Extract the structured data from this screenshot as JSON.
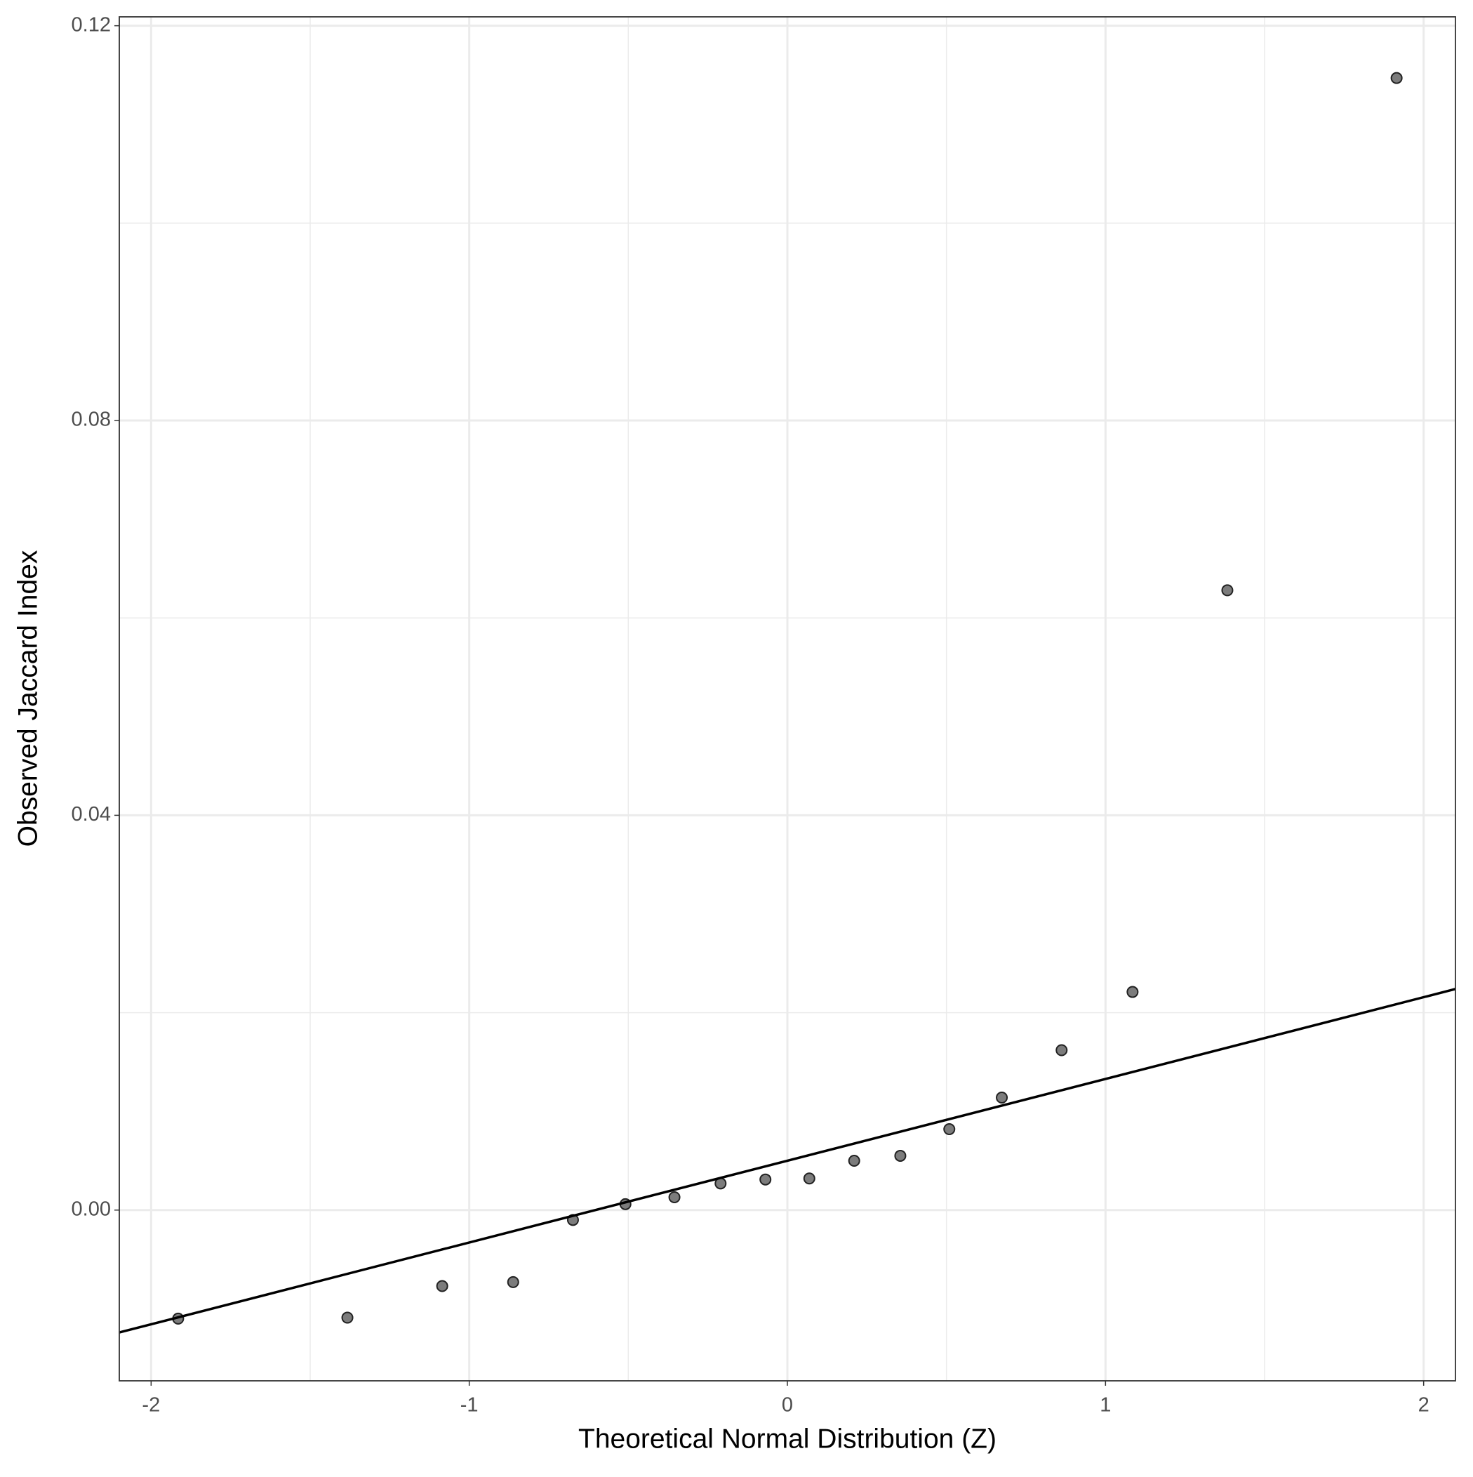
{
  "chart_data": {
    "type": "scatter",
    "x_label": "Theoretical Normal Distribution (Z)",
    "y_label": "Observed Jaccard Index",
    "series": [
      {
        "color": "#6e6e6e",
        "x": [
          -1.915,
          -1.383,
          -1.085,
          -0.862,
          -0.674,
          -0.509,
          -0.355,
          -0.21,
          -0.069,
          0.069,
          0.21,
          0.355,
          0.509,
          0.674,
          0.862,
          1.085,
          1.383,
          1.915
        ],
        "values": [
          -0.011,
          -0.0109,
          -0.0077,
          -0.0073,
          -0.001,
          0.0006,
          0.0013,
          0.0027,
          0.0031,
          0.0032,
          0.005,
          0.0055,
          0.0082,
          0.0114,
          0.0162,
          0.0221,
          0.0628,
          0.1147
        ]
      }
    ],
    "reference_line": {
      "color": "#000000",
      "x": [
        -2.1,
        2.1
      ],
      "values": [
        -0.0124,
        0.0224
      ]
    },
    "xlim": [
      -2.1,
      2.1
    ],
    "ylim": [
      -0.0173,
      0.1209
    ],
    "xticks": [
      -2,
      -1,
      0,
      1,
      2
    ],
    "yticks": [
      {
        "value": 0,
        "label": "0.00"
      },
      0.04,
      0.08,
      0.12
    ],
    "minor_xticks": [
      -1.5,
      -0.5,
      0.5,
      1.5
    ],
    "minor_yticks": [
      0.02,
      0.06,
      0.1
    ],
    "grid": true
  }
}
